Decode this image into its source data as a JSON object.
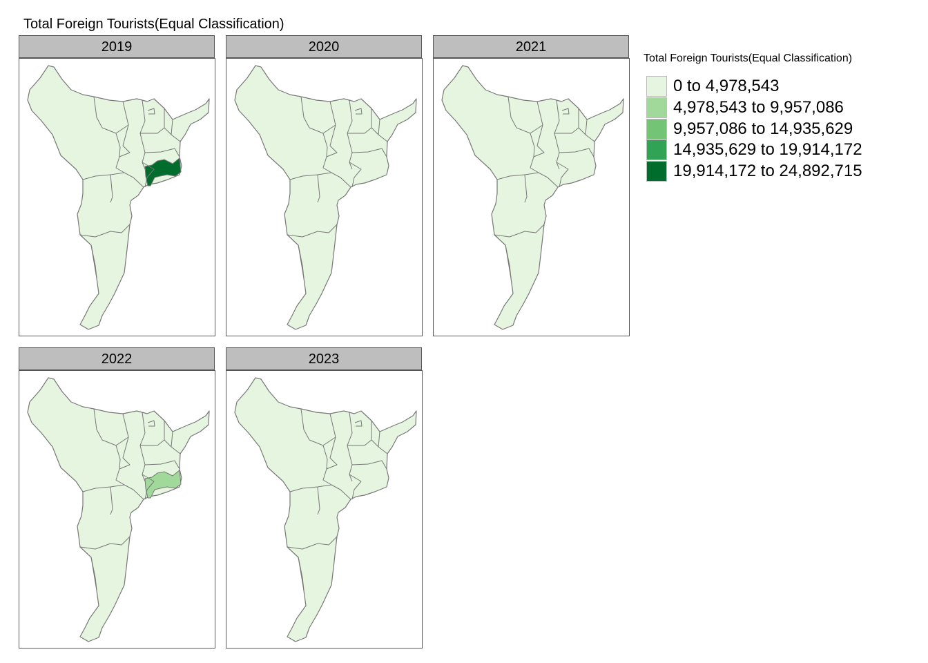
{
  "title": "Total Foreign Tourists(Equal Classification)",
  "legend": {
    "title": "Total Foreign Tourists(Equal Classification)",
    "classes": [
      {
        "label": "0 to 4,978,543",
        "color": "#e5f5e0"
      },
      {
        "label": "4,978,543 to 9,957,086",
        "color": "#a1d99b"
      },
      {
        "label": "9,957,086 to 14,935,629",
        "color": "#74c476"
      },
      {
        "label": "14,935,629 to 19,914,172",
        "color": "#31a354"
      },
      {
        "label": "19,914,172 to 24,892,715",
        "color": "#006d2c"
      }
    ]
  },
  "panels": [
    {
      "year": "2019",
      "highlight": {
        "region": "central-city",
        "class_index": 4
      }
    },
    {
      "year": "2020",
      "highlight": null
    },
    {
      "year": "2021",
      "highlight": null
    },
    {
      "year": "2022",
      "highlight": {
        "region": "central-city",
        "class_index": 1
      }
    },
    {
      "year": "2023",
      "highlight": null
    }
  ],
  "colors": {
    "base_fill": "#e5f5e0",
    "border": "#777777",
    "strip": "#bebebe"
  }
}
